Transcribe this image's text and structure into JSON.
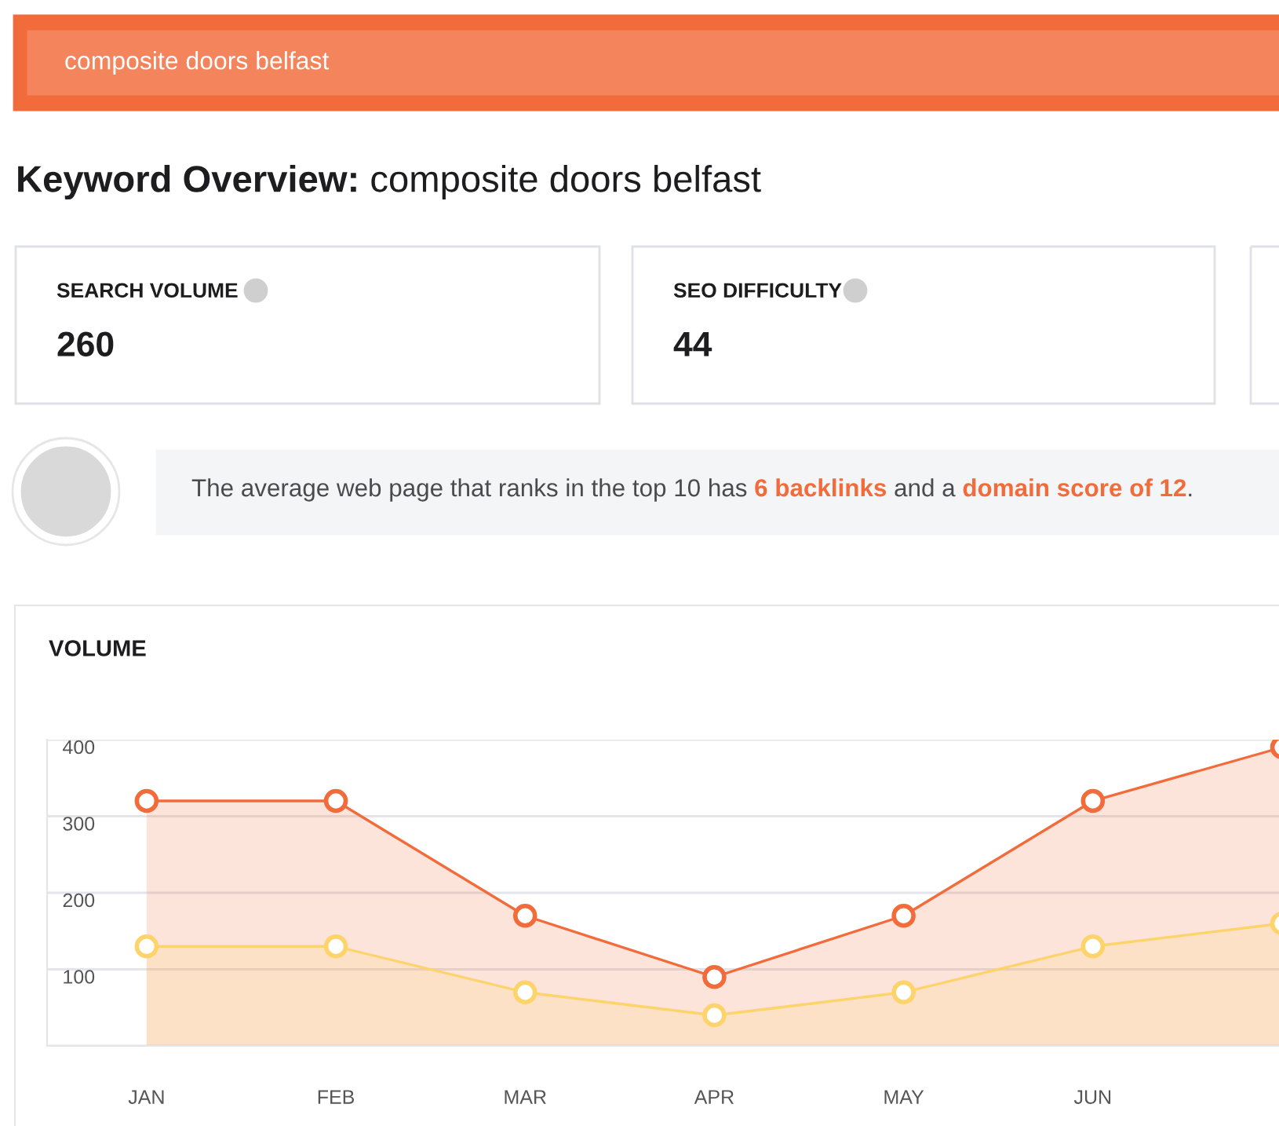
{
  "chart_data": [
    {
      "type": "other",
      "title": "Keyword Overview: composite doors belfast",
      "annotations": [
        "composite doors belfast",
        "SEARCH VOLUME",
        "260",
        "SEO DIFFICULTY",
        "44",
        "The average web page that ranks in the top 10 has ",
        "6 backlinks",
        " and a ",
        "domain score of 12",
        "."
      ]
    },
    {
      "type": "area",
      "title": "VOLUME",
      "categories": [
        "JAN",
        "FEB",
        "MAR",
        "APR",
        "MAY",
        "JUN",
        null
      ],
      "series": [
        {
          "color": "#f26b3a",
          "values": [
            320,
            320,
            170,
            90,
            170,
            320,
            390
          ]
        },
        {
          "color": "#fdd36b",
          "values": [
            130,
            130,
            70,
            40,
            70,
            130,
            160
          ]
        }
      ],
      "ylim": [
        0,
        400
      ],
      "yticks": [
        {
          "value": 0,
          "label": null
        },
        100,
        200,
        300,
        400
      ],
      "grid": "y",
      "marker": "circle",
      "line_style": "solid"
    }
  ]
}
